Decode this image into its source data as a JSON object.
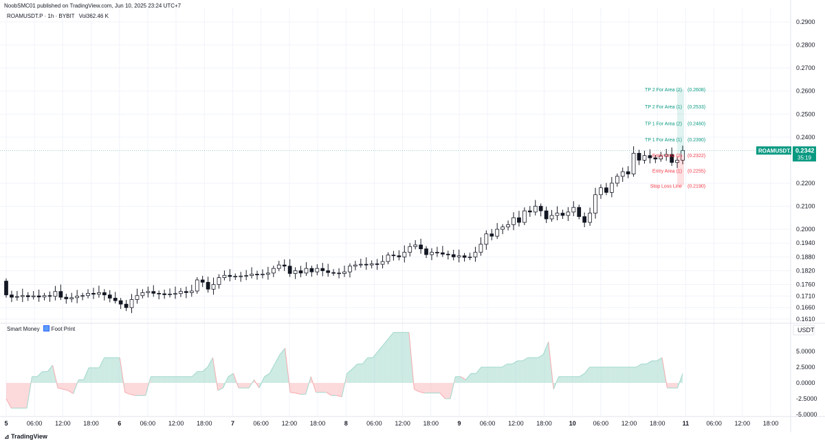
{
  "header": {
    "published": "NoobSMC01 published on TradingView.com, Jun 10, 2025 23:24 UTC+7"
  },
  "legend": {
    "symbol": "ROAMUSDT.P · 1h · BYBIT",
    "volume": "Vol362.46 K"
  },
  "indicator": {
    "name": "Smart Money",
    "name2": "Foot Print"
  },
  "brand": "TradingView",
  "price_tag": {
    "symbol": "ROAMUSDT.P",
    "price": "0.2342",
    "countdown": "35:19",
    "color": "#089981"
  },
  "levels": [
    {
      "label": "TP 2 For Area (2)",
      "value": "(0.2608)",
      "price": 0.2608,
      "kind": "tp"
    },
    {
      "label": "TP 2 For Area (1)",
      "value": "(0.2533)",
      "price": 0.2533,
      "kind": "tp"
    },
    {
      "label": "TP 1 For Area (2)",
      "value": "(0.2460)",
      "price": 0.246,
      "kind": "tp"
    },
    {
      "label": "TP 1 For Area (1)",
      "value": "(0.2390)",
      "price": 0.239,
      "kind": "tp"
    },
    {
      "label": "Entry Area (2)",
      "value": "(0.2322)",
      "price": 0.2322,
      "kind": "entry"
    },
    {
      "label": "Entry Area (1)",
      "value": "(0.2255)",
      "price": 0.2255,
      "kind": "entry"
    },
    {
      "label": "Stop Loss Line",
      "value": "(0.2190)",
      "price": 0.219,
      "kind": "sl"
    }
  ],
  "chart_data": [
    {
      "type": "candlestick",
      "price_ticks": [
        "0.2900",
        "0.2800",
        "0.2700",
        "0.2600",
        "0.2500",
        "0.2400",
        "0.2200",
        "0.2100",
        "0.2000",
        "0.1940",
        "0.1880",
        "0.1820",
        "0.1760",
        "0.1710",
        "0.1660",
        "0.1610"
      ],
      "x_ticks": [
        "5",
        "06:00",
        "12:00",
        "18:00",
        "6",
        "06:00",
        "12:00",
        "18:00",
        "7",
        "06:00",
        "12:00",
        "18:00",
        "8",
        "06:00",
        "12:00",
        "18:00",
        "9",
        "06:00",
        "12:00",
        "18:00",
        "10",
        "06:00",
        "12:00",
        "18:00",
        "11",
        "06:00",
        "12:00",
        "18:00"
      ],
      "closes": [
        0.1715,
        0.1705,
        0.1708,
        0.1712,
        0.1707,
        0.1711,
        0.1706,
        0.1712,
        0.1709,
        0.173,
        0.1705,
        0.1698,
        0.1703,
        0.171,
        0.1712,
        0.1722,
        0.1718,
        0.1725,
        0.1715,
        0.1701,
        0.169,
        0.1675,
        0.166,
        0.1695,
        0.1712,
        0.1725,
        0.173,
        0.1722,
        0.172,
        0.1716,
        0.1719,
        0.1721,
        0.173,
        0.1725,
        0.1732,
        0.178,
        0.177,
        0.174,
        0.176,
        0.179,
        0.18,
        0.1795,
        0.1796,
        0.1797,
        0.1799,
        0.1805,
        0.1802,
        0.1805,
        0.181,
        0.183,
        0.1845,
        0.184,
        0.1808,
        0.182,
        0.181,
        0.183,
        0.1815,
        0.183,
        0.182,
        0.1812,
        0.181,
        0.1808,
        0.1815,
        0.184,
        0.1845,
        0.1848,
        0.1845,
        0.185,
        0.1848,
        0.186,
        0.1888,
        0.1885,
        0.188,
        0.19,
        0.1925,
        0.1932,
        0.1915,
        0.189,
        0.19,
        0.1898,
        0.1892,
        0.189,
        0.188,
        0.1885,
        0.1878,
        0.188,
        0.19,
        0.1935,
        0.198,
        0.197,
        0.2,
        0.201,
        0.202,
        0.205,
        0.203,
        0.208,
        0.2075,
        0.21,
        0.208,
        0.2045,
        0.206,
        0.207,
        0.206,
        0.2075,
        0.2095,
        0.2055,
        0.203,
        0.207,
        0.215,
        0.218,
        0.216,
        0.22,
        0.223,
        0.225,
        0.224,
        0.233,
        0.23,
        0.232,
        0.231,
        0.2305,
        0.2318,
        0.2325,
        0.229,
        0.23,
        0.2342
      ],
      "y_range": [
        0.159,
        0.293
      ]
    },
    {
      "type": "area",
      "name": "Smart Money",
      "y_ticks": [
        "5.0000",
        "2.5000",
        "0.0000",
        "-2.5000",
        "-5.0000"
      ],
      "unit": "USDT",
      "ylim": [
        -5.0,
        8.0
      ],
      "values": [
        -2.5,
        -4,
        -4,
        -4,
        -4,
        1,
        1,
        1.8,
        1.8,
        2.8,
        -0.8,
        -1,
        -1.2,
        -1.7,
        0.5,
        0.5,
        2.4,
        2.4,
        2.4,
        4,
        4,
        4,
        4,
        -1.5,
        -1.8,
        -2,
        -2,
        -2,
        1,
        1,
        1,
        1,
        1,
        1,
        1,
        1,
        1,
        1.8,
        1.8,
        2.5,
        4,
        -1.2,
        -0.8,
        1,
        1.5,
        -0.8,
        -0.8,
        -0.8,
        0.5,
        -0.8,
        1,
        1.5,
        3,
        4.5,
        5.5,
        -1.5,
        -1.6,
        -1.8,
        -1.8,
        1,
        -1.5,
        -1.5,
        -1.5,
        -2,
        -2,
        -2.2,
        1.5,
        2.2,
        3,
        3,
        4,
        4,
        5,
        6,
        7,
        8,
        8,
        8,
        8,
        -1,
        -1.4,
        -1.6,
        -1.6,
        -1.6,
        -1.6,
        -2.5,
        -2.5,
        1,
        1,
        0.5,
        1.5,
        1.5,
        2.5,
        2.5,
        2.5,
        2.5,
        2.5,
        3,
        3,
        3.5,
        3.5,
        4,
        4,
        4,
        4.5,
        6.5,
        -1,
        1,
        1,
        1,
        1,
        1,
        1.5,
        2.5,
        2.5,
        2.5,
        2.5,
        2.5,
        2.5,
        2.5,
        2.5,
        2.5,
        2.5,
        3,
        3,
        3.5,
        3.5,
        4,
        -0.8,
        -0.8,
        -0.8,
        1.5
      ]
    }
  ]
}
